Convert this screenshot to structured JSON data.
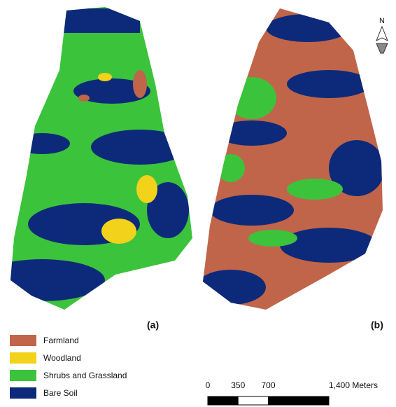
{
  "panels": [
    {
      "label": "(a)"
    },
    {
      "label": "(b)"
    }
  ],
  "north_arrow": "N",
  "legend": [
    {
      "name": "Farmland",
      "color": "#c0654a"
    },
    {
      "name": "Woodland",
      "color": "#f2d21b"
    },
    {
      "name": "Shrubs and Grassland",
      "color": "#3cc33c"
    },
    {
      "name": "Bare Soil",
      "color": "#0d2a7a"
    }
  ],
  "scale_bar": {
    "ticks": [
      0,
      350,
      700,
      {
        "value": 1400,
        "label": "1,400 Meters"
      }
    ]
  }
}
